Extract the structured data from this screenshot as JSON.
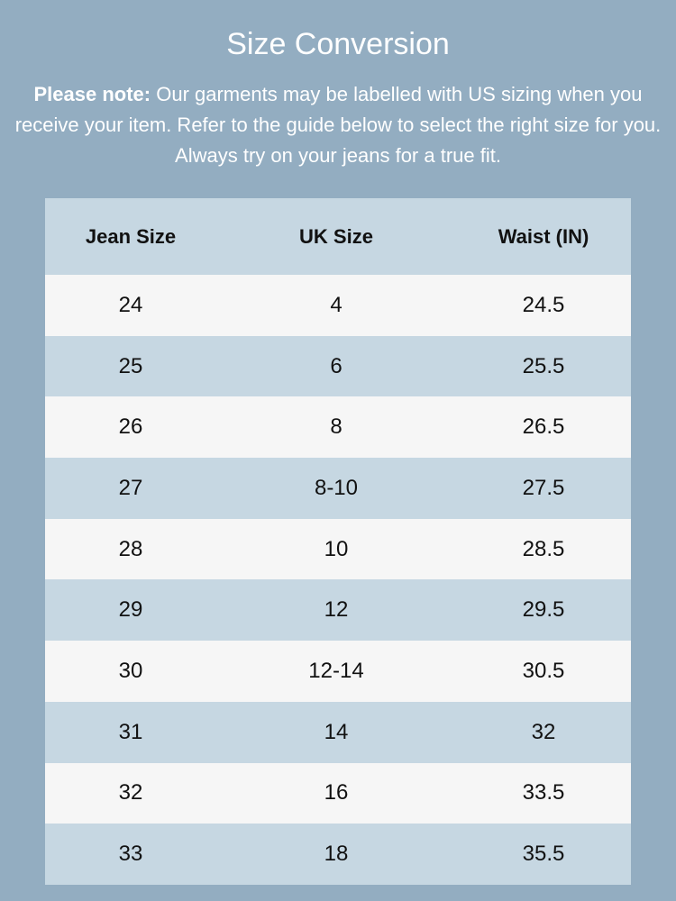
{
  "title": "Size Conversion",
  "note": {
    "bold": "Please note:",
    "text": " Our garments may be labelled with US sizing when you receive your item. Refer to the guide below to select the right size for you. Always try on your jeans for a true fit."
  },
  "colors": {
    "background": "#93adc1",
    "header_row": "#c6d7e2",
    "light_row": "#f6f6f6"
  },
  "table": {
    "headers": [
      "Jean Size",
      "UK Size",
      "Waist (IN)"
    ],
    "rows": [
      [
        "24",
        "4",
        "24.5"
      ],
      [
        "25",
        "6",
        "25.5"
      ],
      [
        "26",
        "8",
        "26.5"
      ],
      [
        "27",
        "8-10",
        "27.5"
      ],
      [
        "28",
        "10",
        "28.5"
      ],
      [
        "29",
        "12",
        "29.5"
      ],
      [
        "30",
        "12-14",
        "30.5"
      ],
      [
        "31",
        "14",
        "32"
      ],
      [
        "32",
        "16",
        "33.5"
      ],
      [
        "33",
        "18",
        "35.5"
      ]
    ]
  }
}
